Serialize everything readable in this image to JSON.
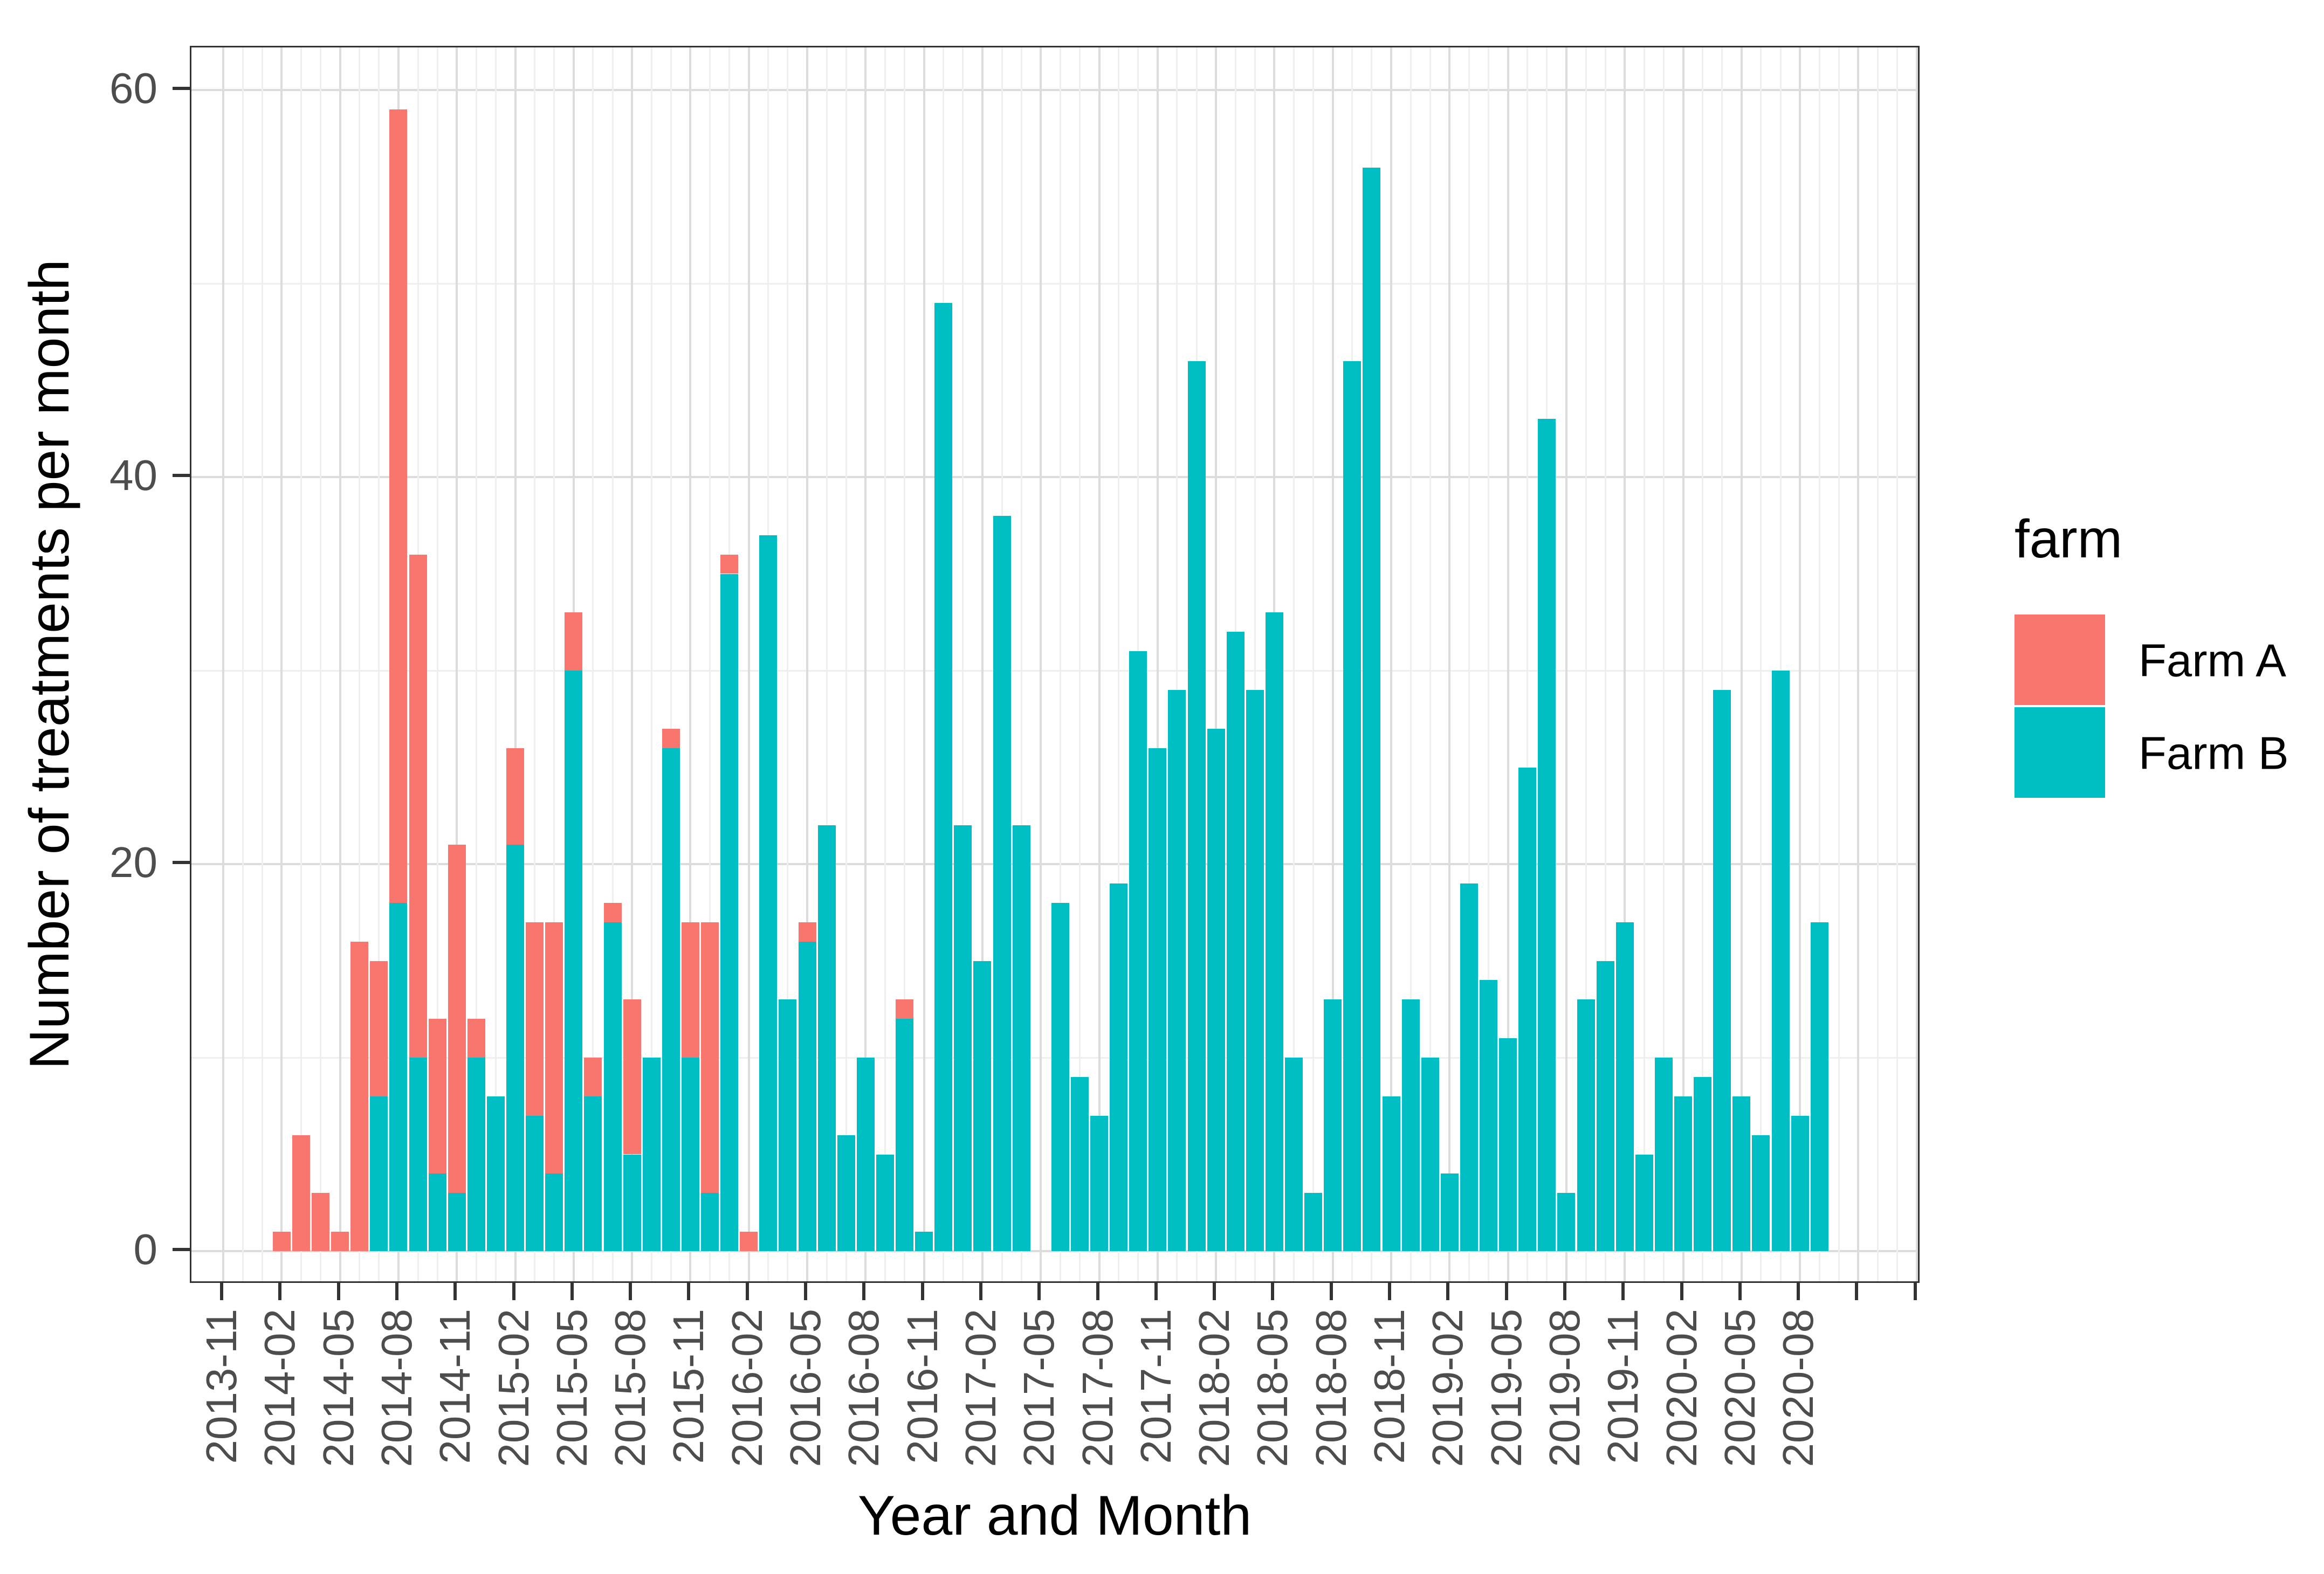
{
  "chart_data": {
    "type": "bar",
    "stacked": true,
    "title": "",
    "xlabel": "Year and Month",
    "ylabel": "Number of treatments per month",
    "ylim": [
      0,
      60
    ],
    "y_ticks": [
      0,
      20,
      40,
      60
    ],
    "y_minor_gridlines": [
      10,
      30,
      50
    ],
    "grid": true,
    "legend_position": "right",
    "legend_title": "farm",
    "categories": [
      "2013-11",
      "2013-12",
      "2014-01",
      "2014-02",
      "2014-03",
      "2014-04",
      "2014-05",
      "2014-06",
      "2014-07",
      "2014-08",
      "2014-09",
      "2014-10",
      "2014-11",
      "2014-12",
      "2015-01",
      "2015-02",
      "2015-03",
      "2015-04",
      "2015-05",
      "2015-06",
      "2015-07",
      "2015-08",
      "2015-09",
      "2015-10",
      "2015-11",
      "2015-12",
      "2016-01",
      "2016-02",
      "2016-03",
      "2016-04",
      "2016-05",
      "2016-06",
      "2016-07",
      "2016-08",
      "2016-09",
      "2016-10",
      "2016-11",
      "2016-12",
      "2017-01",
      "2017-02",
      "2017-03",
      "2017-04",
      "2017-05",
      "2017-06",
      "2017-07",
      "2017-08",
      "2017-09",
      "2017-10",
      "2017-11",
      "2017-12",
      "2018-01",
      "2018-02",
      "2018-03",
      "2018-04",
      "2018-05",
      "2018-06",
      "2018-07",
      "2018-08",
      "2018-09",
      "2018-10",
      "2018-11",
      "2018-12",
      "2019-01",
      "2019-02",
      "2019-03",
      "2019-04",
      "2019-05",
      "2019-06",
      "2019-07",
      "2019-08",
      "2019-09",
      "2019-10",
      "2019-11",
      "2019-12",
      "2020-01",
      "2020-02",
      "2020-03",
      "2020-04",
      "2020-05",
      "2020-06",
      "2020-07",
      "2020-08",
      "2020-09"
    ],
    "series": [
      {
        "name": "Farm A",
        "color": "#F8766D",
        "values": [
          0,
          0,
          0,
          1,
          6,
          3,
          1,
          16,
          7,
          41,
          26,
          8,
          18,
          2,
          0,
          5,
          10,
          13,
          3,
          2,
          1,
          8,
          0,
          1,
          7,
          14,
          1,
          1,
          0,
          0,
          1,
          0,
          0,
          0,
          0,
          1,
          0,
          0,
          0,
          0,
          0,
          0,
          0,
          0,
          0,
          0,
          0,
          0,
          0,
          0,
          0,
          0,
          0,
          0,
          0,
          0,
          0,
          0,
          0,
          0,
          0,
          0,
          0,
          0,
          0,
          0,
          0,
          0,
          0,
          0,
          0,
          0,
          0,
          0,
          0,
          0,
          0,
          0,
          0,
          0,
          0,
          0,
          0
        ]
      },
      {
        "name": "Farm B",
        "color": "#00BFC4",
        "values": [
          0,
          0,
          0,
          0,
          0,
          0,
          0,
          0,
          8,
          18,
          10,
          4,
          3,
          10,
          8,
          21,
          7,
          4,
          30,
          8,
          17,
          5,
          10,
          26,
          10,
          3,
          35,
          0,
          37,
          13,
          16,
          22,
          6,
          10,
          5,
          12,
          1,
          49,
          22,
          15,
          38,
          22,
          0,
          18,
          9,
          7,
          19,
          31,
          26,
          29,
          46,
          27,
          32,
          29,
          33,
          10,
          3,
          13,
          46,
          56,
          8,
          13,
          10,
          4,
          19,
          14,
          11,
          25,
          43,
          3,
          13,
          15,
          17,
          5,
          10,
          8,
          9,
          29,
          8,
          6,
          30,
          7,
          17
        ]
      }
    ],
    "x_tick_labels": [
      "2013-11",
      "2014-02",
      "2014-05",
      "2014-08",
      "2014-11",
      "2015-02",
      "2015-05",
      "2015-08",
      "2015-11",
      "2016-02",
      "2016-05",
      "2016-08",
      "2016-11",
      "2017-02",
      "2017-05",
      "2017-08",
      "2017-11",
      "2018-02",
      "2018-05",
      "2018-08",
      "2018-11",
      "2019-02",
      "2019-05",
      "2019-08",
      "2019-11",
      "2020-02",
      "2020-05",
      "2020-08"
    ],
    "x_tick_every": 3
  },
  "axes": {
    "x_title": "Year and Month",
    "y_title": "Number of treatments per month",
    "y_tick_labels": [
      "0",
      "20",
      "40",
      "60"
    ]
  },
  "legend": {
    "title": "farm",
    "items": [
      {
        "label": "Farm A",
        "color": "#F8766D"
      },
      {
        "label": "Farm B",
        "color": "#00BFC4"
      }
    ]
  },
  "colors": {
    "farm_a": "#F8766D",
    "farm_b": "#00BFC4",
    "grid_major": "#dcdcdc",
    "grid_minor": "#efefef",
    "panel_border": "#333333",
    "tick_text": "#4d4d4d"
  }
}
